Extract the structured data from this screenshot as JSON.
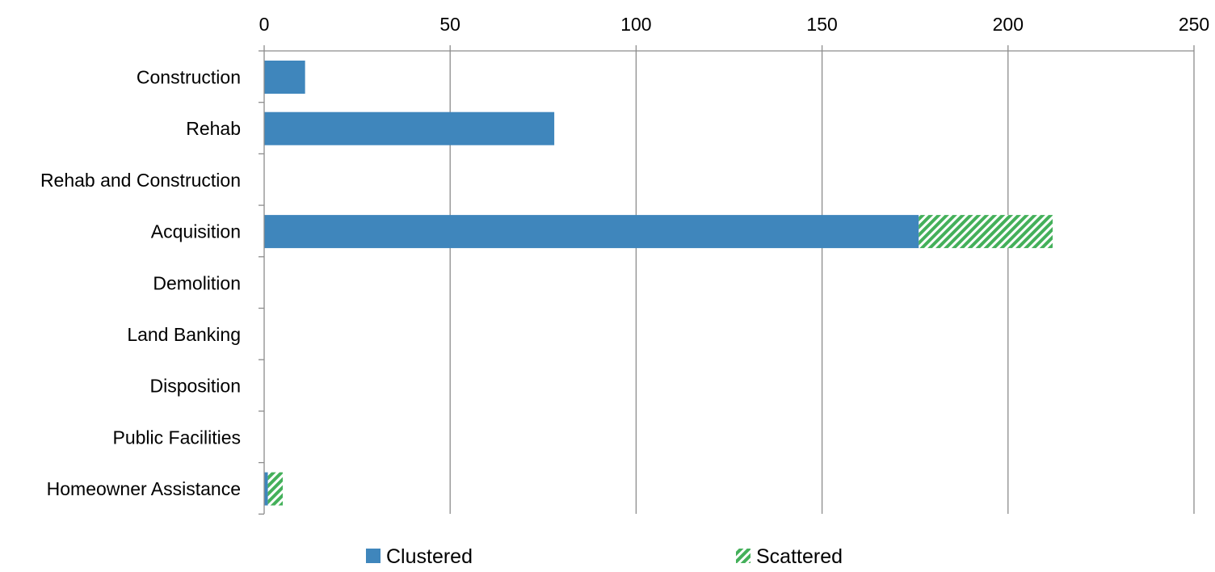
{
  "colors": {
    "clustered": "#3f86bc",
    "scattered": "#44b05a",
    "gridline": "#8c8c8c",
    "axis": "#8c8c8c",
    "background": "#ffffff"
  },
  "chart_data": {
    "type": "bar",
    "orientation": "horizontal",
    "stacked": true,
    "title": "",
    "xlabel": "",
    "ylabel": "",
    "xlim": [
      0,
      250
    ],
    "x_ticks": [
      0,
      50,
      100,
      150,
      200,
      250
    ],
    "x_axis_position": "top",
    "grid": true,
    "legend_placement": "bottom",
    "categories": [
      "Construction",
      "Rehab",
      "Rehab and Construction",
      "Acquisition",
      "Demolition",
      "Land Banking",
      "Disposition",
      "Public Facilities",
      "Homeowner Assistance"
    ],
    "series": [
      {
        "name": "Clustered",
        "fill": "solid",
        "color": "#3f86bc",
        "values": [
          11,
          78,
          0,
          176,
          0,
          0,
          0,
          0,
          1
        ]
      },
      {
        "name": "Scattered",
        "fill": "diagonal-stripes",
        "color": "#44b05a",
        "values": [
          0,
          0,
          0,
          36,
          0,
          0,
          0,
          0,
          4
        ]
      }
    ]
  }
}
